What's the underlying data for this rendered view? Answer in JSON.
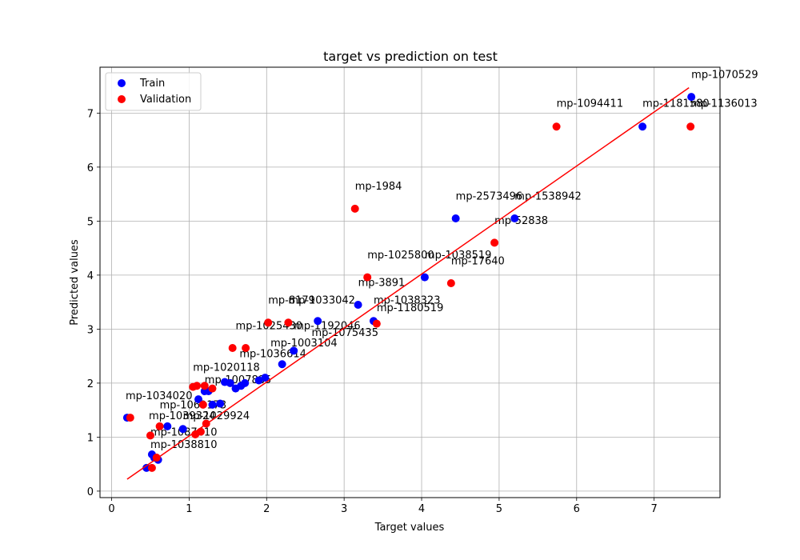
{
  "chart_data": {
    "type": "scatter",
    "title": "target vs prediction on test",
    "xlabel": "Target values",
    "ylabel": "Predicted values",
    "xlim": [
      -0.15,
      7.85
    ],
    "ylim": [
      -0.12,
      7.85
    ],
    "xticks": [
      0,
      1,
      2,
      3,
      4,
      5,
      6,
      7
    ],
    "yticks": [
      0,
      1,
      2,
      3,
      4,
      5,
      6,
      7
    ],
    "grid": true,
    "legend": {
      "placement": "top-left",
      "entries": [
        {
          "label": "Train",
          "color": "#0000ff"
        },
        {
          "label": "Validation",
          "color": "#ff0000"
        }
      ]
    },
    "fit_line": {
      "color": "#ff0000",
      "x": [
        0.2,
        7.45
      ],
      "y": [
        0.22,
        7.47
      ]
    },
    "series": [
      {
        "name": "Train",
        "color": "#0000ff",
        "points": [
          [
            7.48,
            7.3
          ],
          [
            6.85,
            6.75
          ],
          [
            5.2,
            5.05
          ],
          [
            4.44,
            5.05
          ],
          [
            4.04,
            3.96
          ],
          [
            3.38,
            3.15
          ],
          [
            3.18,
            3.45
          ],
          [
            2.66,
            3.15
          ],
          [
            2.35,
            2.6
          ],
          [
            2.2,
            2.35
          ],
          [
            1.98,
            2.1
          ],
          [
            1.9,
            2.05
          ],
          [
            1.72,
            2.0
          ],
          [
            1.67,
            1.95
          ],
          [
            1.6,
            1.9
          ],
          [
            1.53,
            2.0
          ],
          [
            1.46,
            2.02
          ],
          [
            1.4,
            1.62
          ],
          [
            1.3,
            1.6
          ],
          [
            1.25,
            1.85
          ],
          [
            1.2,
            1.85
          ],
          [
            1.12,
            1.7
          ],
          [
            0.92,
            1.15
          ],
          [
            0.72,
            1.2
          ],
          [
            0.6,
            0.58
          ],
          [
            0.55,
            0.62
          ],
          [
            0.52,
            0.68
          ],
          [
            0.45,
            0.43
          ],
          [
            0.2,
            1.36
          ]
        ]
      },
      {
        "name": "Validation",
        "color": "#ff0000",
        "points": [
          [
            7.47,
            6.75
          ],
          [
            5.74,
            6.75
          ],
          [
            4.94,
            4.6
          ],
          [
            4.38,
            3.85
          ],
          [
            3.14,
            5.23
          ],
          [
            3.3,
            3.96
          ],
          [
            3.42,
            3.1
          ],
          [
            2.28,
            3.12
          ],
          [
            2.02,
            3.12
          ],
          [
            1.73,
            2.65
          ],
          [
            1.56,
            2.65
          ],
          [
            1.3,
            1.9
          ],
          [
            1.2,
            1.95
          ],
          [
            1.1,
            1.95
          ],
          [
            1.05,
            1.93
          ],
          [
            1.18,
            1.6
          ],
          [
            1.22,
            1.25
          ],
          [
            1.15,
            1.1
          ],
          [
            1.08,
            1.05
          ],
          [
            0.62,
            1.2
          ],
          [
            0.58,
            0.62
          ],
          [
            0.5,
            1.03
          ],
          [
            0.52,
            0.43
          ],
          [
            0.24,
            1.36
          ]
        ]
      }
    ],
    "annotations": [
      {
        "text": "mp-1070529",
        "x": 7.48,
        "y": 7.65
      },
      {
        "text": "mp-1094411",
        "x": 5.74,
        "y": 7.12
      },
      {
        "text": "mp-1181580",
        "x": 6.85,
        "y": 7.12
      },
      {
        "text": "mp-1136013",
        "x": 7.47,
        "y": 7.12
      },
      {
        "text": "mp-1984",
        "x": 3.14,
        "y": 5.58
      },
      {
        "text": "mp-2573496",
        "x": 4.44,
        "y": 5.4
      },
      {
        "text": "mp-1538942",
        "x": 5.2,
        "y": 5.4
      },
      {
        "text": "mp-52838",
        "x": 4.94,
        "y": 4.95
      },
      {
        "text": "mp-1025800",
        "x": 3.3,
        "y": 4.31
      },
      {
        "text": "mp-1038519",
        "x": 4.04,
        "y": 4.31
      },
      {
        "text": "mp-17640",
        "x": 4.38,
        "y": 4.2
      },
      {
        "text": "mp-3891",
        "x": 3.18,
        "y": 3.8
      },
      {
        "text": "mp-8179",
        "x": 2.02,
        "y": 3.47
      },
      {
        "text": "mp-1033042",
        "x": 2.28,
        "y": 3.47
      },
      {
        "text": "mp-1038323",
        "x": 3.38,
        "y": 3.47
      },
      {
        "text": "mp-1180519",
        "x": 3.42,
        "y": 3.33
      },
      {
        "text": "mp-1025430",
        "x": 1.6,
        "y": 3.0
      },
      {
        "text": "mp-1192046",
        "x": 2.35,
        "y": 3.0
      },
      {
        "text": "mp-1075435",
        "x": 2.58,
        "y": 2.87
      },
      {
        "text": "mp-1003104",
        "x": 2.05,
        "y": 2.68
      },
      {
        "text": "mp-1036614",
        "x": 1.65,
        "y": 2.48
      },
      {
        "text": "mp-1020118",
        "x": 1.05,
        "y": 2.23
      },
      {
        "text": "mp-1007885",
        "x": 1.2,
        "y": 2.0
      },
      {
        "text": "mp-1034020",
        "x": 0.18,
        "y": 1.7
      },
      {
        "text": "mp-1069173",
        "x": 0.62,
        "y": 1.53
      },
      {
        "text": "mp-1039324",
        "x": 0.48,
        "y": 1.33
      },
      {
        "text": "mp-1029924",
        "x": 0.92,
        "y": 1.33
      },
      {
        "text": "mp-1087410",
        "x": 0.5,
        "y": 1.03
      },
      {
        "text": "mp-1038810",
        "x": 0.5,
        "y": 0.8
      }
    ]
  }
}
